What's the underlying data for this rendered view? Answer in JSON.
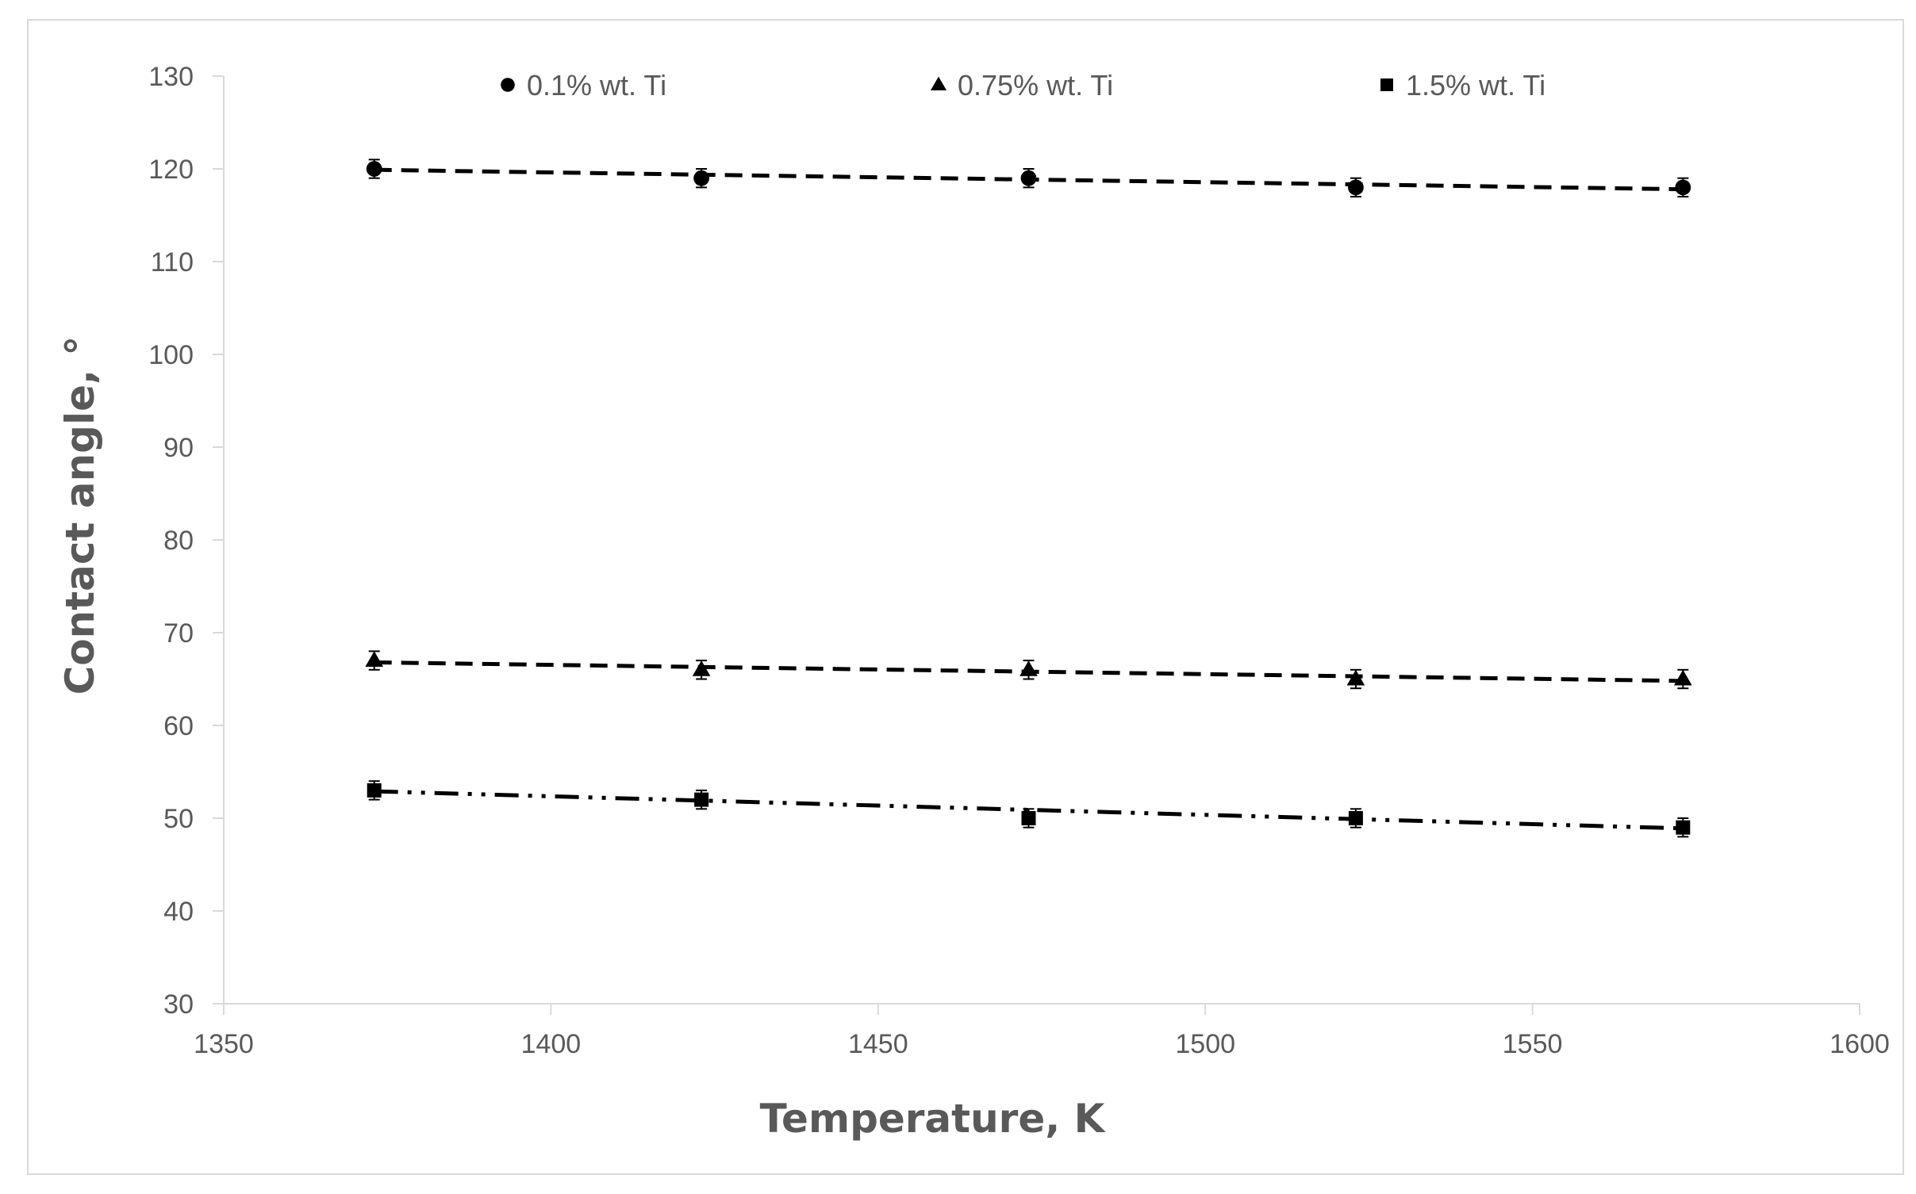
{
  "chart_data": {
    "type": "scatter",
    "xlabel": "Temperature, K",
    "ylabel": "Contact angle, °",
    "xlim": [
      1350,
      1600
    ],
    "ylim": [
      30,
      130
    ],
    "xticks": [
      1350,
      1400,
      1450,
      1500,
      1550,
      1600
    ],
    "yticks": [
      30,
      40,
      50,
      60,
      70,
      80,
      90,
      100,
      110,
      120,
      130
    ],
    "grid": false,
    "legend_position": "top",
    "trendlines": true,
    "series": [
      {
        "name": "0.1% wt. Ti",
        "marker": "circle",
        "line_style": "dashed",
        "color": "#000000",
        "x": [
          1373,
          1423,
          1473,
          1523,
          1573
        ],
        "y": [
          120,
          119,
          119,
          118,
          118
        ],
        "error": 1,
        "trend": [
          119.9,
          117.8
        ]
      },
      {
        "name": "0.75% wt. Ti",
        "marker": "triangle",
        "line_style": "dashed",
        "color": "#000000",
        "x": [
          1373,
          1423,
          1473,
          1523,
          1573
        ],
        "y": [
          67,
          66,
          66,
          65,
          65
        ],
        "error": 1,
        "trend": [
          66.8,
          64.8
        ]
      },
      {
        "name": "1.5% wt. Ti",
        "marker": "square",
        "line_style": "dash-dot-dot",
        "color": "#000000",
        "x": [
          1373,
          1423,
          1473,
          1523,
          1573
        ],
        "y": [
          53,
          52,
          50,
          50,
          49
        ],
        "error": 1,
        "trend": [
          52.9,
          48.9
        ]
      }
    ]
  }
}
